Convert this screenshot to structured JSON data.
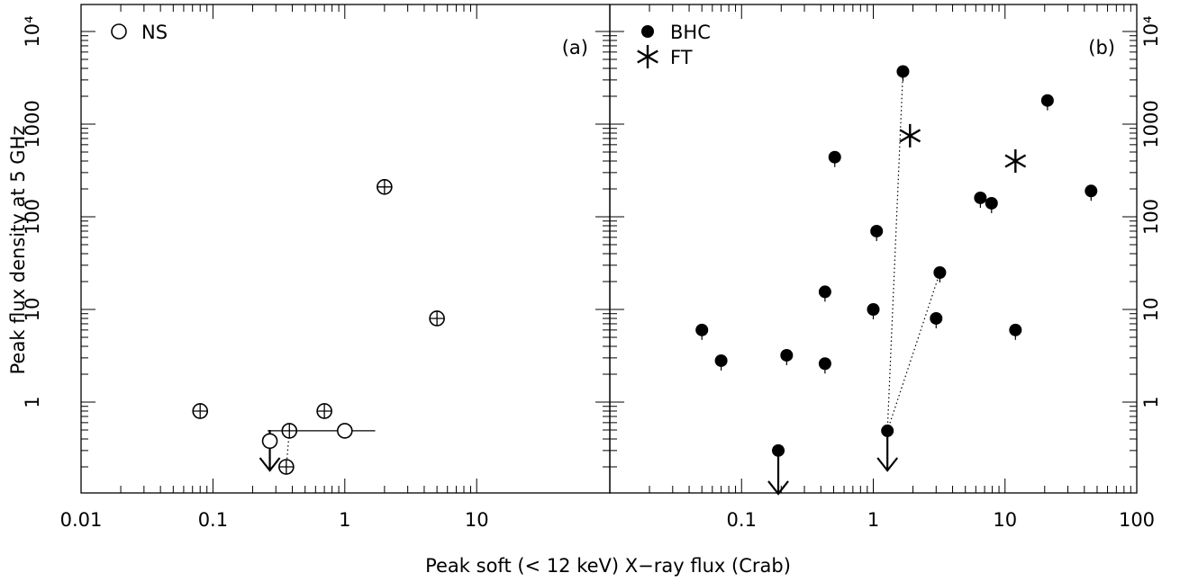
{
  "figure": {
    "xlabel": "Peak soft (< 12 keV) X−ray flux (Crab)",
    "ylabel": "Peak flux density at 5 GHz"
  },
  "chart_data": [
    {
      "type": "scatter",
      "panel_label": "(a)",
      "xscale": "log",
      "yscale": "log",
      "xlim": [
        0.01,
        10
      ],
      "ylim": [
        0.1,
        10000
      ],
      "x_tick_labels": [
        "0.01",
        "0.1",
        "1",
        "10"
      ],
      "y_tick_labels": [
        "1",
        "10",
        "100",
        "1000",
        "10⁴"
      ],
      "legend": [
        {
          "symbol": "open-circle",
          "label": "NS"
        }
      ],
      "legend_position": "top-left",
      "series": [
        {
          "name": "NS",
          "marker": "open-circle",
          "points": [
            {
              "x": 0.08,
              "y": 0.8,
              "cross": true
            },
            {
              "x": 0.27,
              "y": 0.38,
              "cross": false
            },
            {
              "x": 0.36,
              "y": 0.2,
              "cross": true
            },
            {
              "x": 0.38,
              "y": 0.49,
              "cross": true
            },
            {
              "x": 0.7,
              "y": 0.8,
              "cross": true
            },
            {
              "x": 1.0,
              "y": 0.49,
              "cross": false
            },
            {
              "x": 2.0,
              "y": 210,
              "cross": true
            },
            {
              "x": 5.0,
              "y": 8,
              "cross": true
            }
          ]
        }
      ],
      "upper_limits": [
        {
          "x": 0.27,
          "y": 0.5
        }
      ],
      "horizontal_bars": [
        {
          "x1": 0.26,
          "x2": 1.7,
          "y": 0.49
        }
      ],
      "connectors": [
        {
          "x1": 0.36,
          "y1": 0.2,
          "x2": 0.38,
          "y2": 0.49
        }
      ]
    },
    {
      "type": "scatter",
      "panel_label": "(b)",
      "xscale": "log",
      "yscale": "log",
      "xlim": [
        0.01,
        100
      ],
      "ylim": [
        0.1,
        10000
      ],
      "x_tick_labels": [
        "0.01",
        "0.1",
        "1",
        "10",
        "100"
      ],
      "y_tick_labels": [
        "1",
        "10",
        "100",
        "1000",
        "10⁴"
      ],
      "legend": [
        {
          "symbol": "filled-circle",
          "label": "BHC"
        },
        {
          "symbol": "asterisk",
          "label": "FT"
        }
      ],
      "legend_position": "top-left",
      "series": [
        {
          "name": "BHC",
          "marker": "filled-circle",
          "points": [
            {
              "x": 0.05,
              "y": 6
            },
            {
              "x": 0.07,
              "y": 2.8
            },
            {
              "x": 0.19,
              "y": 0.3
            },
            {
              "x": 0.22,
              "y": 3.2
            },
            {
              "x": 0.43,
              "y": 15.5
            },
            {
              "x": 0.43,
              "y": 2.6
            },
            {
              "x": 0.51,
              "y": 440
            },
            {
              "x": 1.0,
              "y": 10
            },
            {
              "x": 1.06,
              "y": 70
            },
            {
              "x": 1.28,
              "y": 0.49
            },
            {
              "x": 1.68,
              "y": 3700
            },
            {
              "x": 3.0,
              "y": 8
            },
            {
              "x": 3.2,
              "y": 25
            },
            {
              "x": 6.5,
              "y": 160
            },
            {
              "x": 7.9,
              "y": 140
            },
            {
              "x": 12.0,
              "y": 6
            },
            {
              "x": 21.0,
              "y": 1800
            },
            {
              "x": 45.0,
              "y": 190
            }
          ]
        },
        {
          "name": "FT",
          "marker": "asterisk",
          "points": [
            {
              "x": 1.9,
              "y": 750
            },
            {
              "x": 12.0,
              "y": 400
            }
          ]
        }
      ],
      "upper_limits": [
        {
          "x": 0.19,
          "y": 0.28
        },
        {
          "x": 1.28,
          "y": 0.5
        }
      ],
      "connectors": [
        {
          "x1": 1.28,
          "y1": 0.49,
          "x2": 1.68,
          "y2": 3700
        },
        {
          "x1": 1.28,
          "y1": 0.49,
          "x2": 3.2,
          "y2": 25
        }
      ]
    }
  ]
}
